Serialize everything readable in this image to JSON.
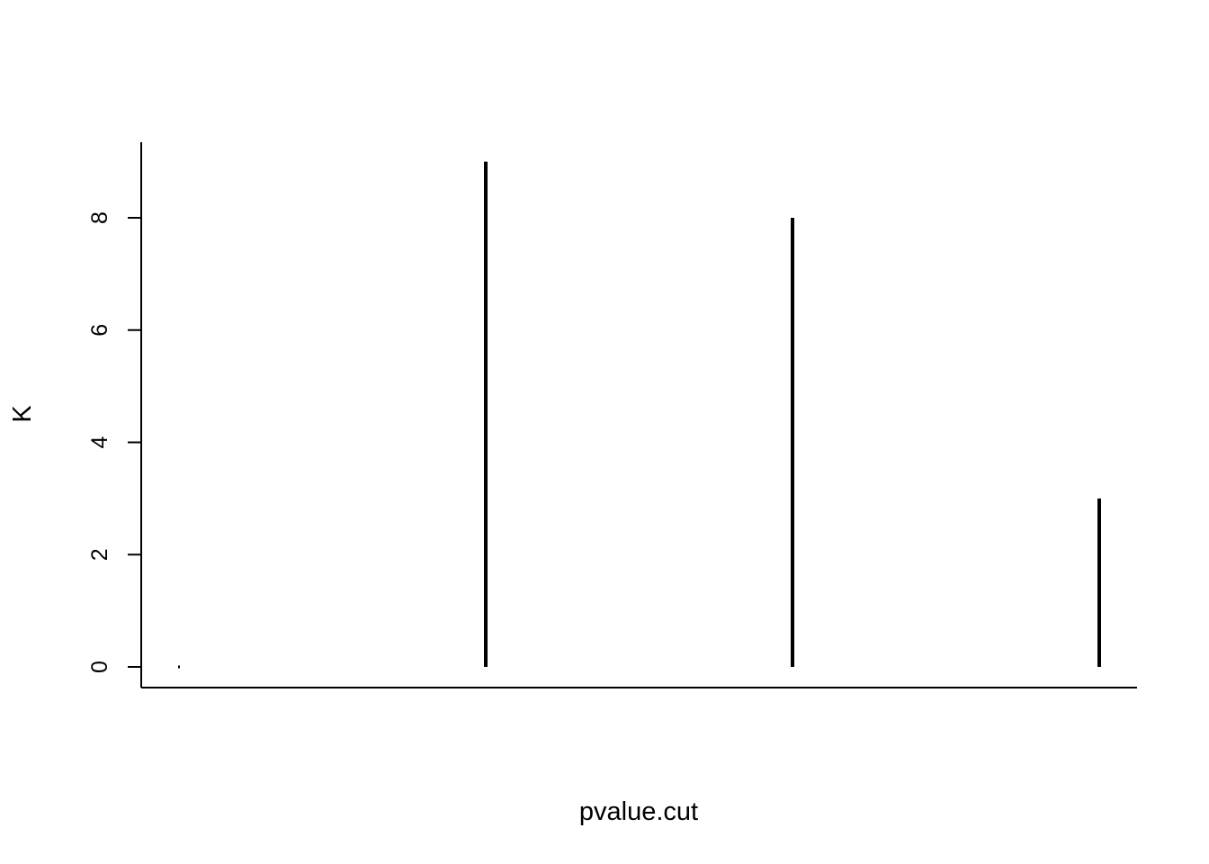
{
  "chart_data": {
    "type": "bar",
    "style": "histogram-lines",
    "x": [
      1,
      2,
      3,
      4
    ],
    "values": [
      0,
      9,
      8,
      3
    ],
    "xlabel": "pvalue.cut",
    "ylabel": "K",
    "ylim": [
      0,
      9
    ],
    "yticks": [
      0,
      2,
      4,
      6,
      8
    ],
    "ytick_labels": [
      "0",
      "2",
      "4",
      "6",
      "8"
    ],
    "grid": false,
    "legend": "none",
    "color": "#000000"
  }
}
